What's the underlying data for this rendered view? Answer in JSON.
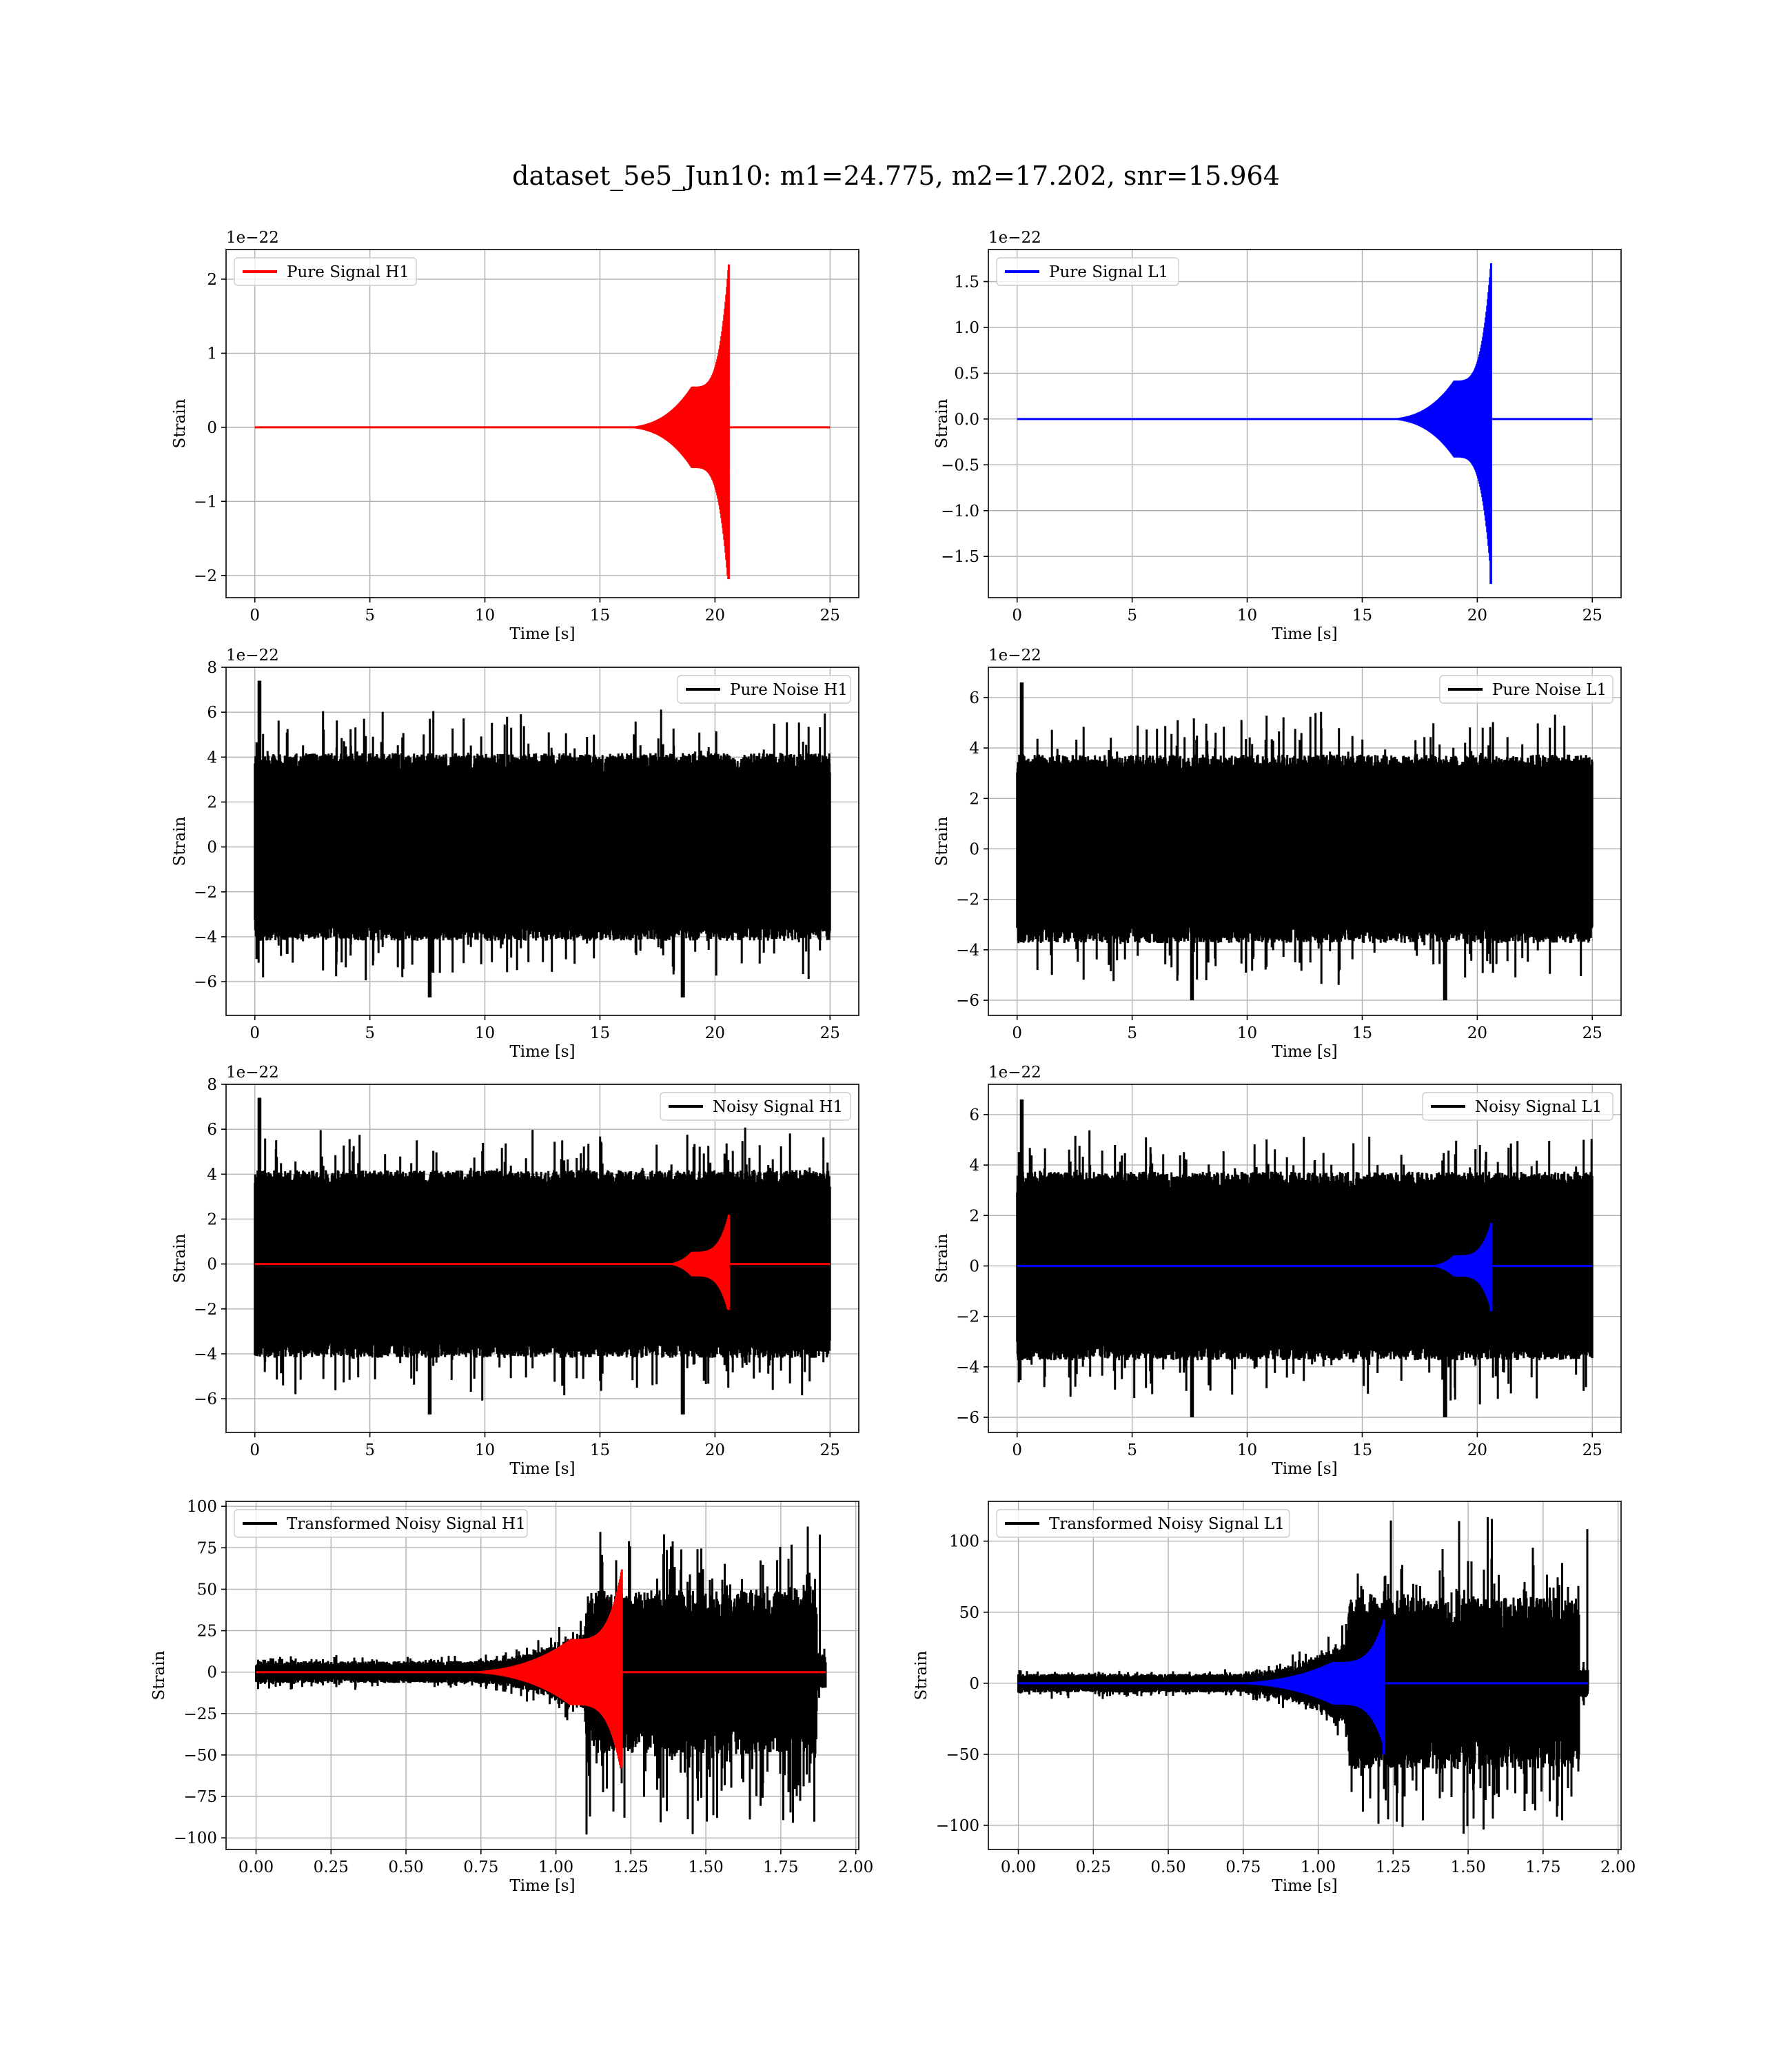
{
  "figure": {
    "title": "dataset_5e5_Jun10: m1=24.775, m2=17.202, snr=15.964"
  },
  "colors": {
    "h1_signal": "#ff0000",
    "l1_signal": "#0000ff",
    "noise": "#000000",
    "grid": "#b0b0b0"
  },
  "chart_data": [
    {
      "type": "line",
      "panel": "row1-left",
      "xlabel": "Time [s]",
      "ylabel": "Strain",
      "offset_text": "1e−22",
      "xlim": [
        -1.25,
        26.25
      ],
      "ylim": [
        -2.3,
        2.4
      ],
      "xticks": [
        0,
        5,
        10,
        15,
        20,
        25
      ],
      "xtick_labels": [
        "0",
        "5",
        "10",
        "15",
        "20",
        "25"
      ],
      "yticks": [
        -2,
        -1,
        0,
        1,
        2
      ],
      "ytick_labels": [
        "−2",
        "−1",
        "0",
        "1",
        "2"
      ],
      "grid": true,
      "legend_position": "top-left",
      "series": [
        {
          "name": "Pure Signal H1",
          "color": "#ff0000",
          "kind": "chirp",
          "duration": 25,
          "start": 15.5,
          "plateau": 19.0,
          "merger": 20.6,
          "plateau_amp": 0.55,
          "peak_amp": 2.2,
          "peak_low": -2.05
        }
      ]
    },
    {
      "type": "line",
      "panel": "row1-right",
      "xlabel": "Time [s]",
      "ylabel": "Strain",
      "offset_text": "1e−22",
      "xlim": [
        -1.25,
        26.25
      ],
      "ylim": [
        -1.95,
        1.85
      ],
      "xticks": [
        0,
        5,
        10,
        15,
        20,
        25
      ],
      "xtick_labels": [
        "0",
        "5",
        "10",
        "15",
        "20",
        "25"
      ],
      "yticks": [
        -1.5,
        -1.0,
        -0.5,
        0.0,
        0.5,
        1.0,
        1.5
      ],
      "ytick_labels": [
        "−1.5",
        "−1.0",
        "−0.5",
        "0.0",
        "0.5",
        "1.0",
        "1.5"
      ],
      "grid": true,
      "legend_position": "top-left",
      "series": [
        {
          "name": "Pure Signal L1",
          "color": "#0000ff",
          "kind": "chirp",
          "duration": 25,
          "start": 15.5,
          "plateau": 19.0,
          "merger": 20.6,
          "plateau_amp": 0.42,
          "peak_amp": 1.7,
          "peak_low": -1.8
        }
      ]
    },
    {
      "type": "line",
      "panel": "row2-left",
      "xlabel": "Time [s]",
      "ylabel": "Strain",
      "offset_text": "1e−22",
      "xlim": [
        -1.25,
        26.25
      ],
      "ylim": [
        -7.5,
        8.0
      ],
      "xticks": [
        0,
        5,
        10,
        15,
        20,
        25
      ],
      "xtick_labels": [
        "0",
        "5",
        "10",
        "15",
        "20",
        "25"
      ],
      "yticks": [
        -6,
        -4,
        -2,
        0,
        2,
        4,
        6,
        8
      ],
      "ytick_labels": [
        "−6",
        "−4",
        "−2",
        "0",
        "2",
        "4",
        "6",
        "8"
      ],
      "grid": true,
      "legend_position": "top-right",
      "series": [
        {
          "name": "Pure Noise H1",
          "color": "#000000",
          "kind": "noise",
          "duration": 25,
          "core_amp": 3.8,
          "spike_max": 5.8,
          "max": 7.4,
          "min": -6.7
        }
      ]
    },
    {
      "type": "line",
      "panel": "row2-right",
      "xlabel": "Time [s]",
      "ylabel": "Strain",
      "offset_text": "1e−22",
      "xlim": [
        -1.25,
        26.25
      ],
      "ylim": [
        -6.6,
        7.2
      ],
      "xticks": [
        0,
        5,
        10,
        15,
        20,
        25
      ],
      "xtick_labels": [
        "0",
        "5",
        "10",
        "15",
        "20",
        "25"
      ],
      "yticks": [
        -6,
        -4,
        -2,
        0,
        2,
        4,
        6
      ],
      "ytick_labels": [
        "−6",
        "−4",
        "−2",
        "0",
        "2",
        "4",
        "6"
      ],
      "grid": true,
      "legend_position": "top-right",
      "series": [
        {
          "name": "Pure Noise L1",
          "color": "#000000",
          "kind": "noise",
          "duration": 25,
          "core_amp": 3.4,
          "spike_max": 5.2,
          "max": 6.6,
          "min": -6.0
        }
      ]
    },
    {
      "type": "line",
      "panel": "row3-left",
      "xlabel": "Time [s]",
      "ylabel": "Strain",
      "offset_text": "1e−22",
      "xlim": [
        -1.25,
        26.25
      ],
      "ylim": [
        -7.5,
        8.0
      ],
      "xticks": [
        0,
        5,
        10,
        15,
        20,
        25
      ],
      "xtick_labels": [
        "0",
        "5",
        "10",
        "15",
        "20",
        "25"
      ],
      "yticks": [
        -6,
        -4,
        -2,
        0,
        2,
        4,
        6,
        8
      ],
      "ytick_labels": [
        "−6",
        "−4",
        "−2",
        "0",
        "2",
        "4",
        "6",
        "8"
      ],
      "grid": true,
      "legend_position": "top-right",
      "series": [
        {
          "name": "Noisy Signal H1",
          "color": "#000000",
          "kind": "noise",
          "duration": 25,
          "core_amp": 3.8,
          "spike_max": 5.8,
          "max": 7.4,
          "min": -6.7
        },
        {
          "name": "",
          "color": "#ff0000",
          "kind": "chirp",
          "duration": 25,
          "start": 17.5,
          "plateau": 19.0,
          "merger": 20.6,
          "plateau_amp": 0.55,
          "peak_amp": 2.2,
          "peak_low": -2.05
        }
      ]
    },
    {
      "type": "line",
      "panel": "row3-right",
      "xlabel": "Time [s]",
      "ylabel": "Strain",
      "offset_text": "1e−22",
      "xlim": [
        -1.25,
        26.25
      ],
      "ylim": [
        -6.6,
        7.2
      ],
      "xticks": [
        0,
        5,
        10,
        15,
        20,
        25
      ],
      "xtick_labels": [
        "0",
        "5",
        "10",
        "15",
        "20",
        "25"
      ],
      "yticks": [
        -6,
        -4,
        -2,
        0,
        2,
        4,
        6
      ],
      "ytick_labels": [
        "−6",
        "−4",
        "−2",
        "0",
        "2",
        "4",
        "6"
      ],
      "grid": true,
      "legend_position": "top-right",
      "series": [
        {
          "name": "Noisy Signal L1",
          "color": "#000000",
          "kind": "noise",
          "duration": 25,
          "core_amp": 3.4,
          "spike_max": 5.2,
          "max": 6.6,
          "min": -6.0
        },
        {
          "name": "",
          "color": "#0000ff",
          "kind": "chirp",
          "duration": 25,
          "start": 17.5,
          "plateau": 19.0,
          "merger": 20.6,
          "plateau_amp": 0.42,
          "peak_amp": 1.7,
          "peak_low": -1.8
        }
      ]
    },
    {
      "type": "line",
      "panel": "row4-left",
      "xlabel": "Time [s]",
      "ylabel": "Strain",
      "offset_text": "",
      "xlim": [
        -0.1,
        2.01
      ],
      "ylim": [
        -107,
        103
      ],
      "xticks": [
        0.0,
        0.25,
        0.5,
        0.75,
        1.0,
        1.25,
        1.5,
        1.75,
        2.0
      ],
      "xtick_labels": [
        "0.00",
        "0.25",
        "0.50",
        "0.75",
        "1.00",
        "1.25",
        "1.50",
        "1.75",
        "2.00"
      ],
      "yticks": [
        -100,
        -75,
        -50,
        -25,
        0,
        25,
        50,
        75,
        100
      ],
      "ytick_labels": [
        "−100",
        "−75",
        "−50",
        "−25",
        "0",
        "25",
        "50",
        "75",
        "100"
      ],
      "grid": true,
      "legend_position": "top-left",
      "series": [
        {
          "name": "Transformed Noisy Signal H1",
          "color": "#000000",
          "kind": "tnoise",
          "duration": 1.9,
          "base_amp": 6,
          "rise_start": 0.7,
          "jump": 1.1,
          "late_amp": 45,
          "max": 88,
          "min": -98,
          "end_burst": 1.87
        },
        {
          "name": "",
          "color": "#ff0000",
          "kind": "chirp",
          "duration": 1.9,
          "start": 0.6,
          "plateau": 1.05,
          "merger": 1.22,
          "plateau_amp": 20,
          "peak_amp": 62,
          "peak_low": -57
        }
      ]
    },
    {
      "type": "line",
      "panel": "row4-right",
      "xlabel": "Time [s]",
      "ylabel": "Strain",
      "offset_text": "",
      "xlim": [
        -0.1,
        2.01
      ],
      "ylim": [
        -117,
        128
      ],
      "xticks": [
        0.0,
        0.25,
        0.5,
        0.75,
        1.0,
        1.25,
        1.5,
        1.75,
        2.0
      ],
      "xtick_labels": [
        "0.00",
        "0.25",
        "0.50",
        "0.75",
        "1.00",
        "1.25",
        "1.50",
        "1.75",
        "2.00"
      ],
      "yticks": [
        -100,
        -50,
        0,
        50,
        100
      ],
      "ytick_labels": [
        "−100",
        "−50",
        "0",
        "50",
        "100"
      ],
      "grid": true,
      "legend_position": "top-left",
      "series": [
        {
          "name": "Transformed Noisy Signal L1",
          "color": "#000000",
          "kind": "tnoise",
          "duration": 1.9,
          "base_amp": 6,
          "rise_start": 0.7,
          "jump": 1.1,
          "late_amp": 55,
          "max": 122,
          "min": -108,
          "end_burst": 1.87
        },
        {
          "name": "",
          "color": "#0000ff",
          "kind": "chirp",
          "duration": 1.9,
          "start": 0.6,
          "plateau": 1.05,
          "merger": 1.22,
          "plateau_amp": 15,
          "peak_amp": 45,
          "peak_low": -50
        }
      ]
    }
  ]
}
